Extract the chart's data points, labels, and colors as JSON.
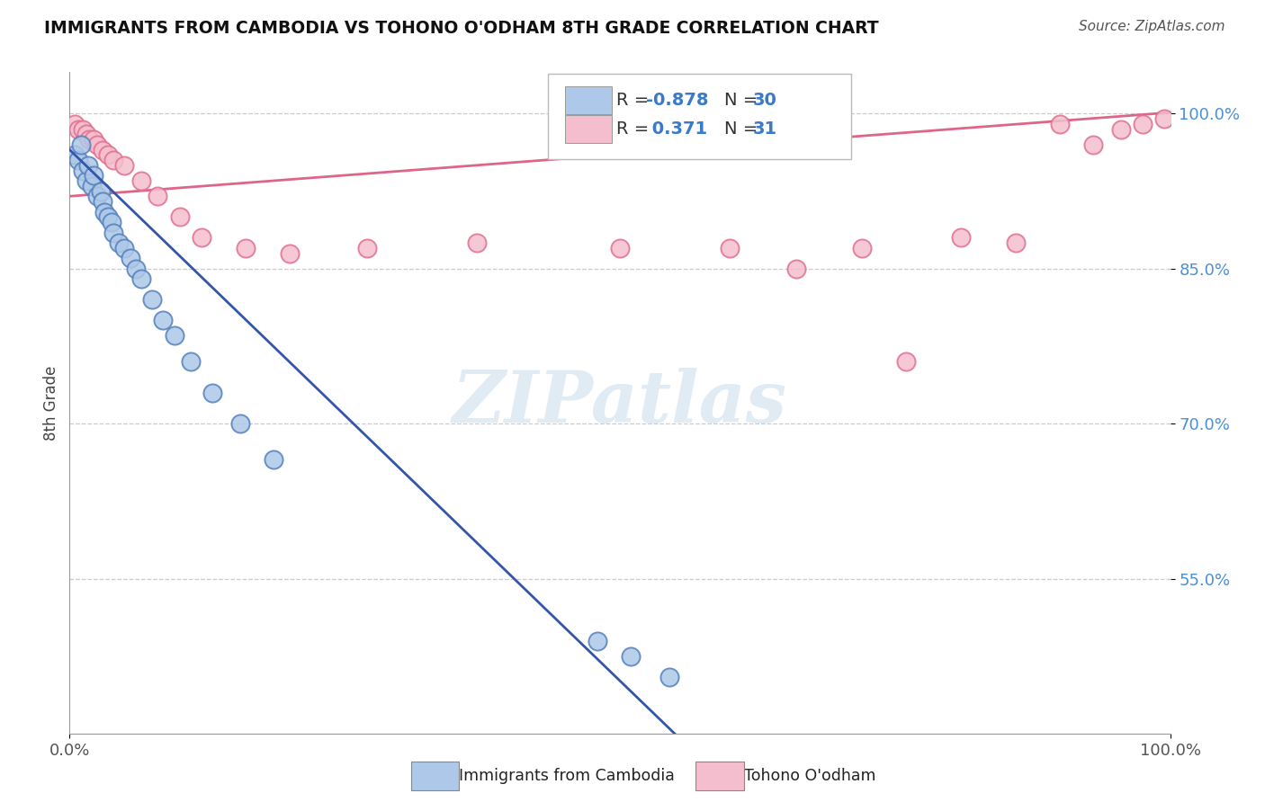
{
  "title": "IMMIGRANTS FROM CAMBODIA VS TOHONO O'ODHAM 8TH GRADE CORRELATION CHART",
  "source": "Source: ZipAtlas.com",
  "ylabel": "8th Grade",
  "xlim": [
    0.0,
    1.0
  ],
  "ylim": [
    0.4,
    1.04
  ],
  "yticks": [
    0.55,
    0.7,
    0.85,
    1.0
  ],
  "ytick_labels": [
    "55.0%",
    "70.0%",
    "85.0%",
    "100.0%"
  ],
  "blue_color": "#adc8e8",
  "pink_color": "#f5bece",
  "blue_edge_color": "#5580bb",
  "pink_edge_color": "#e07090",
  "blue_line_color": "#3355aa",
  "pink_line_color": "#dd6688",
  "blue_r": "-0.878",
  "blue_n": "30",
  "pink_r": "0.371",
  "pink_n": "31",
  "watermark": "ZIPatlas",
  "blue_scatter_x": [
    0.005,
    0.008,
    0.01,
    0.012,
    0.015,
    0.017,
    0.02,
    0.022,
    0.025,
    0.028,
    0.03,
    0.032,
    0.035,
    0.038,
    0.04,
    0.045,
    0.05,
    0.055,
    0.06,
    0.065,
    0.075,
    0.085,
    0.095,
    0.11,
    0.13,
    0.155,
    0.185,
    0.48,
    0.51,
    0.545
  ],
  "blue_scatter_y": [
    0.96,
    0.955,
    0.97,
    0.945,
    0.935,
    0.95,
    0.93,
    0.94,
    0.92,
    0.925,
    0.915,
    0.905,
    0.9,
    0.895,
    0.885,
    0.875,
    0.87,
    0.86,
    0.85,
    0.84,
    0.82,
    0.8,
    0.785,
    0.76,
    0.73,
    0.7,
    0.665,
    0.49,
    0.475,
    0.455
  ],
  "pink_scatter_x": [
    0.005,
    0.008,
    0.012,
    0.015,
    0.018,
    0.022,
    0.025,
    0.03,
    0.035,
    0.04,
    0.05,
    0.065,
    0.08,
    0.1,
    0.12,
    0.16,
    0.2,
    0.27,
    0.37,
    0.5,
    0.6,
    0.66,
    0.72,
    0.76,
    0.81,
    0.86,
    0.9,
    0.93,
    0.955,
    0.975,
    0.995
  ],
  "pink_scatter_y": [
    0.99,
    0.985,
    0.985,
    0.98,
    0.975,
    0.975,
    0.97,
    0.965,
    0.96,
    0.955,
    0.95,
    0.935,
    0.92,
    0.9,
    0.88,
    0.87,
    0.865,
    0.87,
    0.875,
    0.87,
    0.87,
    0.85,
    0.87,
    0.76,
    0.88,
    0.875,
    0.99,
    0.97,
    0.985,
    0.99,
    0.995
  ],
  "blue_line_x": [
    0.0,
    0.55
  ],
  "blue_line_y": [
    0.965,
    0.4
  ],
  "pink_line_x": [
    0.0,
    1.0
  ],
  "pink_line_y": [
    0.92,
    1.001
  ]
}
